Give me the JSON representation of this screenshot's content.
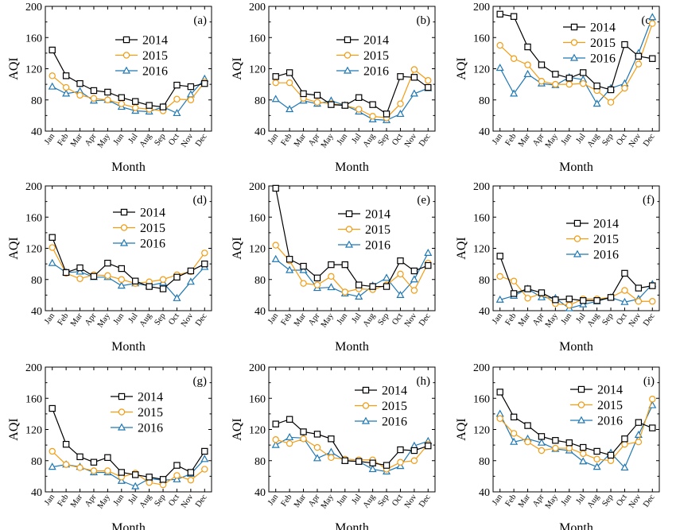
{
  "chart_data": [
    {
      "type": "line",
      "panel_label": "(a)",
      "xlabel": "Month",
      "ylabel": "AQI",
      "ylim": [
        40,
        200
      ],
      "yticks": [
        40,
        80,
        120,
        160,
        200
      ],
      "categories": [
        "Jan",
        "Feb",
        "Mar",
        "Apr",
        "May",
        "Jun",
        "Jul",
        "Aug",
        "Sep",
        "Oct",
        "Nov",
        "Dec"
      ],
      "series": [
        {
          "name": "2014",
          "values": [
            144,
            111,
            101,
            92,
            90,
            83,
            78,
            73,
            71,
            99,
            97,
            101
          ]
        },
        {
          "name": "2015",
          "values": [
            111,
            96,
            86,
            82,
            80,
            75,
            70,
            68,
            66,
            81,
            80,
            103
          ]
        },
        {
          "name": "2016",
          "values": [
            97,
            88,
            91,
            79,
            80,
            71,
            66,
            65,
            71,
            63,
            87,
            107
          ]
        }
      ]
    },
    {
      "type": "line",
      "panel_label": "(b)",
      "xlabel": "Month",
      "ylabel": "AQI",
      "ylim": [
        40,
        200
      ],
      "yticks": [
        40,
        80,
        120,
        160,
        200
      ],
      "categories": [
        "Jan",
        "Feb",
        "Mar",
        "Apr",
        "May",
        "Jun",
        "Jul",
        "Aug",
        "Sep",
        "Oct",
        "Nov",
        "Dec"
      ],
      "series": [
        {
          "name": "2014",
          "values": [
            110,
            115,
            88,
            86,
            74,
            73,
            83,
            74,
            62,
            110,
            109,
            96
          ]
        },
        {
          "name": "2015",
          "values": [
            102,
            102,
            82,
            77,
            75,
            73,
            68,
            59,
            57,
            75,
            119,
            105
          ]
        },
        {
          "name": "2016",
          "values": [
            81,
            68,
            79,
            75,
            79,
            73,
            65,
            55,
            54,
            62,
            88,
            95
          ]
        }
      ]
    },
    {
      "type": "line",
      "panel_label": "(c)",
      "xlabel": "Month",
      "ylabel": "AQI",
      "ylim": [
        40,
        200
      ],
      "yticks": [
        40,
        80,
        120,
        160,
        200
      ],
      "categories": [
        "Jan",
        "Feb",
        "Mar",
        "Apr",
        "May",
        "Jun",
        "Jul",
        "Aug",
        "Sep",
        "Oct",
        "Nov",
        "Dec"
      ],
      "series": [
        {
          "name": "2014",
          "values": [
            190,
            187,
            148,
            125,
            113,
            108,
            115,
            98,
            93,
            151,
            136,
            133
          ]
        },
        {
          "name": "2015",
          "values": [
            150,
            133,
            125,
            104,
            100,
            100,
            101,
            92,
            77,
            95,
            126,
            178
          ]
        },
        {
          "name": "2016",
          "values": [
            121,
            88,
            113,
            101,
            99,
            109,
            106,
            75,
            95,
            101,
            140,
            186
          ]
        }
      ]
    },
    {
      "type": "line",
      "panel_label": "(d)",
      "xlabel": "Month",
      "ylabel": "AQI",
      "ylim": [
        40,
        200
      ],
      "yticks": [
        40,
        80,
        120,
        160,
        200
      ],
      "categories": [
        "Jan",
        "Feb",
        "Mar",
        "Apr",
        "May",
        "Jun",
        "Jul",
        "Aug",
        "Sep",
        "Oct",
        "Nov",
        "Dec"
      ],
      "series": [
        {
          "name": "2014",
          "values": [
            134,
            89,
            95,
            84,
            101,
            94,
            78,
            71,
            68,
            83,
            91,
            100
          ]
        },
        {
          "name": "2015",
          "values": [
            121,
            88,
            81,
            86,
            85,
            80,
            75,
            77,
            80,
            86,
            90,
            114
          ]
        },
        {
          "name": "2016",
          "values": [
            101,
            89,
            90,
            83,
            83,
            72,
            75,
            72,
            76,
            56,
            77,
            96
          ]
        }
      ]
    },
    {
      "type": "line",
      "panel_label": "(e)",
      "xlabel": "Month",
      "ylabel": "AQI",
      "ylim": [
        40,
        200
      ],
      "yticks": [
        40,
        80,
        120,
        160,
        200
      ],
      "categories": [
        "Jan",
        "Feb",
        "Mar",
        "Apr",
        "May",
        "Jun",
        "Jul",
        "Aug",
        "Sep",
        "Oct",
        "Nov",
        "Dec"
      ],
      "series": [
        {
          "name": "2014",
          "values": [
            197,
            106,
            97,
            82,
            99,
            99,
            73,
            71,
            71,
            104,
            91,
            98
          ]
        },
        {
          "name": "2015",
          "values": [
            124,
            104,
            75,
            73,
            84,
            64,
            68,
            67,
            73,
            87,
            66,
            101
          ]
        },
        {
          "name": "2016",
          "values": [
            106,
            92,
            92,
            69,
            70,
            62,
            58,
            72,
            82,
            60,
            80,
            114
          ]
        }
      ]
    },
    {
      "type": "line",
      "panel_label": "(f)",
      "xlabel": "Month",
      "ylabel": "AQI",
      "ylim": [
        40,
        200
      ],
      "yticks": [
        40,
        80,
        120,
        160,
        200
      ],
      "categories": [
        "Jan",
        "Feb",
        "Mar",
        "Apr",
        "May",
        "Jun",
        "Jul",
        "Aug",
        "Sep",
        "Oct",
        "Nov",
        "Dec"
      ],
      "series": [
        {
          "name": "2014",
          "values": [
            110,
            62,
            68,
            63,
            54,
            55,
            53,
            53,
            57,
            88,
            69,
            72
          ]
        },
        {
          "name": "2015",
          "values": [
            84,
            78,
            56,
            62,
            49,
            47,
            55,
            55,
            57,
            66,
            52,
            52
          ]
        },
        {
          "name": "2016",
          "values": [
            54,
            59,
            68,
            57,
            56,
            43,
            48,
            52,
            57,
            51,
            55,
            74
          ]
        }
      ]
    },
    {
      "type": "line",
      "panel_label": "(g)",
      "xlabel": "Month",
      "ylabel": "AQI",
      "ylim": [
        40,
        200
      ],
      "yticks": [
        40,
        80,
        120,
        160,
        200
      ],
      "categories": [
        "Jan",
        "Feb",
        "Mar",
        "Apr",
        "May",
        "Jun",
        "Jul",
        "Aug",
        "Sep",
        "Oct",
        "Nov",
        "Dec"
      ],
      "series": [
        {
          "name": "2014",
          "values": [
            147,
            101,
            85,
            78,
            84,
            65,
            62,
            59,
            56,
            74,
            65,
            92
          ]
        },
        {
          "name": "2015",
          "values": [
            92,
            75,
            71,
            67,
            67,
            59,
            64,
            52,
            49,
            61,
            55,
            69
          ]
        },
        {
          "name": "2016",
          "values": [
            72,
            75,
            72,
            65,
            65,
            54,
            47,
            57,
            55,
            56,
            63,
            82
          ]
        }
      ]
    },
    {
      "type": "line",
      "panel_label": "(h)",
      "xlabel": "Month",
      "ylabel": "AQI",
      "ylim": [
        40,
        200
      ],
      "yticks": [
        40,
        80,
        120,
        160,
        200
      ],
      "categories": [
        "Jan",
        "Feb",
        "Mar",
        "Apr",
        "May",
        "Jun",
        "Jul",
        "Aug",
        "Sep",
        "Oct",
        "Nov",
        "Dec"
      ],
      "series": [
        {
          "name": "2014",
          "values": [
            127,
            133,
            117,
            114,
            108,
            80,
            79,
            77,
            74,
            94,
            93,
            99
          ]
        },
        {
          "name": "2015",
          "values": [
            107,
            102,
            108,
            97,
            84,
            82,
            81,
            81,
            69,
            78,
            80,
            101
          ]
        },
        {
          "name": "2016",
          "values": [
            100,
            110,
            109,
            83,
            91,
            80,
            79,
            69,
            66,
            73,
            99,
            105
          ]
        }
      ]
    },
    {
      "type": "line",
      "panel_label": "(i)",
      "xlabel": "Month",
      "ylabel": "AQI",
      "ylim": [
        40,
        200
      ],
      "yticks": [
        40,
        80,
        120,
        160,
        200
      ],
      "categories": [
        "Jan",
        "Feb",
        "Mar",
        "Apr",
        "May",
        "Jun",
        "Jul",
        "Aug",
        "Sep",
        "Oct",
        "Nov",
        "Dec"
      ],
      "series": [
        {
          "name": "2014",
          "values": [
            168,
            136,
            125,
            111,
            106,
            103,
            97,
            92,
            87,
            108,
            129,
            122
          ]
        },
        {
          "name": "2015",
          "values": [
            134,
            115,
            104,
            93,
            96,
            96,
            89,
            82,
            80,
            101,
            104,
            159
          ]
        },
        {
          "name": "2016",
          "values": [
            140,
            104,
            108,
            103,
            95,
            93,
            79,
            72,
            90,
            71,
            113,
            151
          ]
        }
      ]
    }
  ],
  "series_colors": {
    "2014": "#000000",
    "2015": "#f39c12",
    "2016": "#1f78b4"
  },
  "series_markers": {
    "2014": "square",
    "2015": "circle",
    "2016": "triangle"
  }
}
